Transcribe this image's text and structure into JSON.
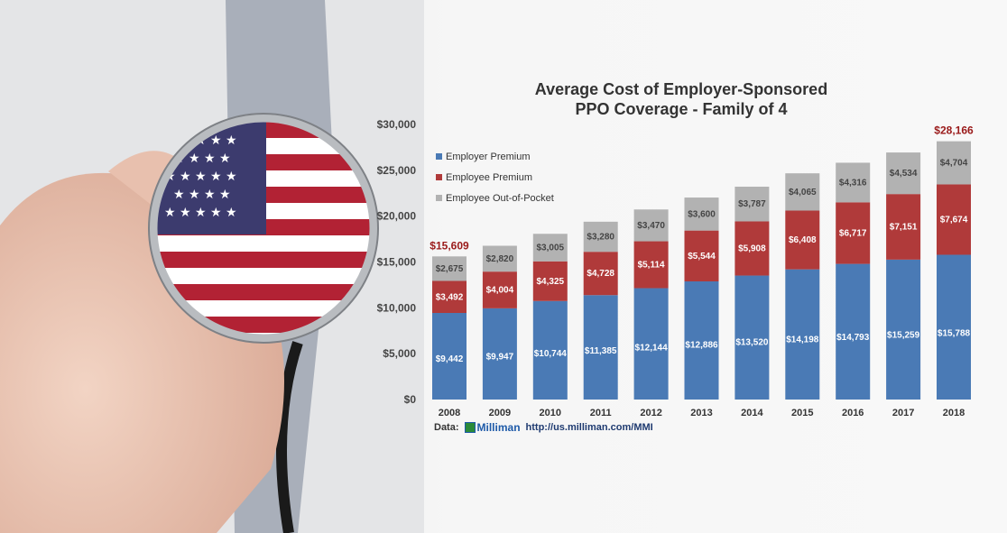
{
  "chart_data": {
    "type": "bar",
    "stacked": true,
    "title": "Average Cost of Employer-Sponsored PPO Coverage - Family of 4",
    "title_lines": [
      "Average Cost of Employer-Sponsored",
      "PPO Coverage - Family of 4"
    ],
    "categories": [
      "2008",
      "2009",
      "2010",
      "2011",
      "2012",
      "2013",
      "2014",
      "2015",
      "2016",
      "2017",
      "2018"
    ],
    "series": [
      {
        "name": "Employer Premium",
        "color": "#4a7ab5",
        "values": [
          9442,
          9947,
          10744,
          11385,
          12144,
          12886,
          13520,
          14198,
          14793,
          15259,
          15788
        ],
        "labels": [
          "$9,442",
          "$9,947",
          "$10,744",
          "$11,385",
          "$12,144",
          "$12,886",
          "$13,520",
          "$14,198",
          "$14,793",
          "$15,259",
          "$15,788"
        ]
      },
      {
        "name": "Employee Premium",
        "color": "#b03a3a",
        "values": [
          3492,
          4004,
          4325,
          4728,
          5114,
          5544,
          5908,
          6408,
          6717,
          7151,
          7674
        ],
        "labels": [
          "$3,492",
          "$4,004",
          "$4,325",
          "$4,728",
          "$5,114",
          "$5,544",
          "$5,908",
          "$6,408",
          "$6,717",
          "$7,151",
          "$7,674"
        ]
      },
      {
        "name": "Employee Out-of-Pocket",
        "color": "#b2b2b2",
        "values": [
          2675,
          2820,
          3005,
          3280,
          3470,
          3600,
          3787,
          4065,
          4316,
          4534,
          4704
        ],
        "labels": [
          "$2,675",
          "$2,820",
          "$3,005",
          "$3,280",
          "$3,470",
          "$3,600",
          "$3,787",
          "$4,065",
          "$4,316",
          "$4,534",
          "$4,704"
        ]
      }
    ],
    "totals_annotated": {
      "2008": "$15,609",
      "2018": "$28,166"
    },
    "yticks": [
      "$0",
      "$5,000",
      "$10,000",
      "$15,000",
      "$20,000",
      "$25,000",
      "$30,000"
    ],
    "ylim": [
      0,
      30000
    ],
    "grid": false,
    "legend": "top-left"
  },
  "footer": {
    "data_label": "Data:",
    "source_logo": "Milliman",
    "url": "http://us.milliman.com/MMI"
  }
}
